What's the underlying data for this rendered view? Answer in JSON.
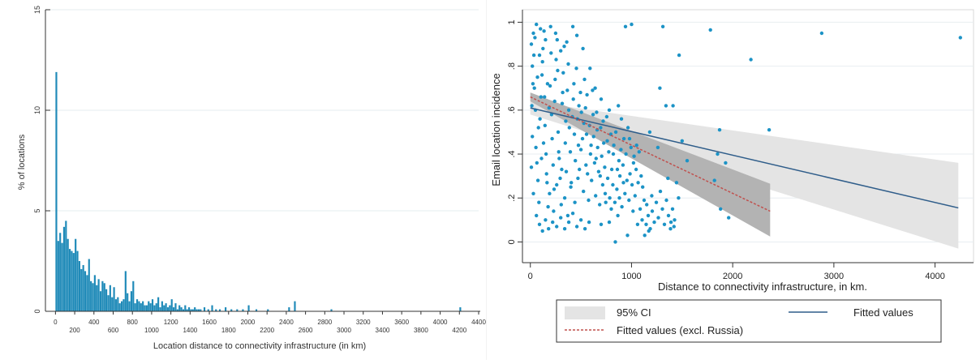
{
  "chart_data": [
    {
      "type": "bar",
      "xlabel": "Location distance to connectivity infrastructure (in km)",
      "ylabel": "% of locations",
      "xlim": [
        -20,
        4400
      ],
      "ylim": [
        0,
        15
      ],
      "x_ticks": [
        0,
        200,
        400,
        600,
        800,
        1000,
        1200,
        1400,
        1600,
        1800,
        2000,
        2200,
        2400,
        2600,
        2800,
        3000,
        3200,
        3400,
        3600,
        3800,
        4000,
        4200,
        4400
      ],
      "x_tick_labels": [
        "0",
        "200",
        "400",
        "600",
        "800",
        "1000",
        "1200",
        "1400",
        "1600",
        "1800",
        "2000",
        "2200",
        "2400",
        "2600",
        "2800",
        "3000",
        "3200",
        "3400",
        "3600",
        "3800",
        "4000",
        "4200",
        "4400"
      ],
      "y_ticks": [
        0,
        5,
        10,
        15
      ],
      "y_tick_labels": [
        "0",
        "5",
        "10",
        "15"
      ],
      "grid": true,
      "bar_color": "#1f8ab8",
      "bin_width": 20,
      "x": [
        0,
        20,
        40,
        60,
        80,
        100,
        120,
        140,
        160,
        180,
        200,
        220,
        240,
        260,
        280,
        300,
        320,
        340,
        360,
        380,
        400,
        420,
        440,
        460,
        480,
        500,
        520,
        540,
        560,
        580,
        600,
        620,
        640,
        660,
        680,
        700,
        720,
        740,
        760,
        780,
        800,
        820,
        840,
        860,
        880,
        900,
        920,
        940,
        960,
        980,
        1000,
        1020,
        1040,
        1060,
        1080,
        1100,
        1120,
        1140,
        1160,
        1180,
        1200,
        1220,
        1240,
        1260,
        1280,
        1300,
        1320,
        1340,
        1360,
        1380,
        1400,
        1420,
        1440,
        1460,
        1480,
        1500,
        1540,
        1580,
        1620,
        1660,
        1700,
        1760,
        1820,
        1880,
        1940,
        2000,
        2080,
        2200,
        2420,
        2480,
        2860,
        4200
      ],
      "values": [
        11.9,
        3.5,
        3.9,
        3.4,
        4.2,
        4.5,
        3.6,
        3.1,
        3.0,
        2.9,
        3.6,
        3.0,
        2.5,
        2.1,
        2.3,
        2.0,
        1.8,
        2.6,
        1.5,
        1.4,
        1.8,
        1.3,
        1.6,
        1.0,
        1.5,
        1.4,
        1.1,
        0.8,
        1.3,
        0.7,
        1.2,
        0.6,
        0.7,
        0.4,
        0.5,
        0.6,
        2.0,
        0.9,
        0.5,
        1.0,
        1.5,
        0.4,
        0.6,
        0.5,
        0.4,
        0.5,
        0.3,
        0.3,
        0.5,
        0.4,
        0.6,
        0.3,
        0.4,
        0.7,
        0.2,
        0.5,
        0.3,
        0.4,
        0.2,
        0.3,
        0.6,
        0.2,
        0.4,
        0.1,
        0.3,
        0.2,
        0.1,
        0.3,
        0.1,
        0.2,
        0.1,
        0.1,
        0.2,
        0.1,
        0.1,
        0.1,
        0.2,
        0.1,
        0.3,
        0.1,
        0.1,
        0.2,
        0.1,
        0.1,
        0.1,
        0.3,
        0.1,
        0.1,
        0.2,
        0.5,
        0.1,
        0.2
      ]
    },
    {
      "type": "scatter",
      "xlabel": "Distance to connectivity infrastructure, in km.",
      "ylabel": "Email location incidence",
      "xlim": [
        -30,
        4300
      ],
      "ylim": [
        -0.05,
        1.02
      ],
      "x_ticks": [
        0,
        1000,
        2000,
        3000,
        4000
      ],
      "x_tick_labels": [
        "0",
        "1000",
        "2000",
        "3000",
        "4000"
      ],
      "y_ticks": [
        0,
        0.2,
        0.4,
        0.6,
        0.8,
        1
      ],
      "y_tick_labels": [
        "0",
        ".2",
        ".4",
        ".6",
        ".8",
        "1"
      ],
      "grid": true,
      "point_color": "#1c93c6",
      "fit_color": "#2f5d8a",
      "fit_excl_color": "#c0504d",
      "ci_color": "#e4e4e4",
      "ci_excl_color": "#b3b3b3",
      "legend_position": "bottom",
      "legend": [
        "95% CI",
        "Fitted values",
        "Fitted values (excl. Russia)"
      ],
      "fitted": {
        "x": [
          0,
          4230
        ],
        "y": [
          0.61,
          0.155
        ]
      },
      "ci": {
        "x": [
          0,
          4230
        ],
        "upper": [
          0.64,
          0.36
        ],
        "lower": [
          0.58,
          -0.03
        ]
      },
      "fitted_excl": {
        "x": [
          0,
          2370
        ],
        "y": [
          0.66,
          0.14
        ]
      },
      "ci_excl": {
        "x": [
          0,
          2370
        ],
        "upper": [
          0.68,
          0.265
        ],
        "lower": [
          0.64,
          0.025
        ]
      },
      "points": [
        [
          1780,
          0.965
        ],
        [
          2880,
          0.95
        ],
        [
          4250,
          0.93
        ],
        [
          2180,
          0.83
        ],
        [
          1000,
          0.99
        ],
        [
          940,
          0.98
        ],
        [
          1310,
          0.98
        ],
        [
          1470,
          0.85
        ],
        [
          1280,
          0.7
        ],
        [
          1340,
          0.62
        ],
        [
          1410,
          0.62
        ],
        [
          1870,
          0.51
        ],
        [
          2360,
          0.51
        ],
        [
          1500,
          0.46
        ],
        [
          1260,
          0.43
        ],
        [
          1550,
          0.37
        ],
        [
          1850,
          0.4
        ],
        [
          1930,
          0.36
        ],
        [
          1820,
          0.28
        ],
        [
          1880,
          0.15
        ],
        [
          1960,
          0.11
        ],
        [
          1130,
          0.03
        ],
        [
          1170,
          0.05
        ],
        [
          1060,
          0.08
        ],
        [
          840,
          0.0
        ],
        [
          960,
          0.03
        ],
        [
          780,
          0.09
        ],
        [
          700,
          0.08
        ],
        [
          1150,
          0.17
        ],
        [
          1200,
          0.21
        ],
        [
          1390,
          0.09
        ],
        [
          1420,
          0.07
        ],
        [
          1110,
          0.25
        ],
        [
          1360,
          0.29
        ],
        [
          1020,
          0.36
        ],
        [
          1050,
          0.44
        ],
        [
          980,
          0.47
        ],
        [
          1180,
          0.5
        ],
        [
          900,
          0.56
        ],
        [
          870,
          0.62
        ],
        [
          780,
          0.6
        ],
        [
          700,
          0.65
        ],
        [
          640,
          0.7
        ],
        [
          590,
          0.79
        ],
        [
          520,
          0.88
        ],
        [
          460,
          0.94
        ],
        [
          420,
          0.98
        ],
        [
          360,
          0.91
        ],
        [
          300,
          0.87
        ],
        [
          250,
          0.95
        ],
        [
          200,
          0.98
        ],
        [
          150,
          0.92
        ],
        [
          100,
          0.97
        ],
        [
          60,
          0.99
        ],
        [
          30,
          0.95
        ],
        [
          10,
          0.9
        ],
        [
          20,
          0.8
        ],
        [
          40,
          0.7
        ],
        [
          70,
          0.75
        ],
        [
          90,
          0.85
        ],
        [
          120,
          0.82
        ],
        [
          140,
          0.66
        ],
        [
          170,
          0.72
        ],
        [
          210,
          0.58
        ],
        [
          240,
          0.64
        ],
        [
          270,
          0.78
        ],
        [
          320,
          0.68
        ],
        [
          350,
          0.55
        ],
        [
          380,
          0.6
        ],
        [
          430,
          0.72
        ],
        [
          480,
          0.62
        ],
        [
          530,
          0.54
        ],
        [
          560,
          0.67
        ],
        [
          620,
          0.58
        ],
        [
          660,
          0.51
        ],
        [
          720,
          0.55
        ],
        [
          760,
          0.46
        ],
        [
          820,
          0.4
        ],
        [
          860,
          0.33
        ],
        [
          920,
          0.27
        ],
        [
          880,
          0.2
        ],
        [
          800,
          0.15
        ],
        [
          740,
          0.22
        ],
        [
          690,
          0.3
        ],
        [
          650,
          0.38
        ],
        [
          600,
          0.44
        ],
        [
          550,
          0.35
        ],
        [
          500,
          0.42
        ],
        [
          470,
          0.29
        ],
        [
          440,
          0.18
        ],
        [
          400,
          0.25
        ],
        [
          370,
          0.12
        ],
        [
          340,
          0.2
        ],
        [
          310,
          0.33
        ],
        [
          280,
          0.41
        ],
        [
          260,
          0.26
        ],
        [
          230,
          0.14
        ],
        [
          190,
          0.22
        ],
        [
          160,
          0.31
        ],
        [
          130,
          0.45
        ],
        [
          110,
          0.38
        ],
        [
          80,
          0.52
        ],
        [
          50,
          0.6
        ],
        [
          20,
          0.48
        ],
        [
          10,
          0.34
        ],
        [
          30,
          0.22
        ],
        [
          60,
          0.12
        ],
        [
          90,
          0.08
        ],
        [
          120,
          0.05
        ],
        [
          150,
          0.1
        ],
        [
          180,
          0.06
        ],
        [
          220,
          0.09
        ],
        [
          260,
          0.07
        ],
        [
          300,
          0.11
        ],
        [
          340,
          0.06
        ],
        [
          380,
          0.09
        ],
        [
          420,
          0.13
        ],
        [
          460,
          0.07
        ],
        [
          500,
          0.1
        ],
        [
          540,
          0.06
        ],
        [
          580,
          0.09
        ],
        [
          15,
          0.62
        ],
        [
          25,
          0.72
        ],
        [
          35,
          0.85
        ],
        [
          45,
          0.93
        ],
        [
          55,
          0.43
        ],
        [
          65,
          0.36
        ],
        [
          75,
          0.28
        ],
        [
          85,
          0.18
        ],
        [
          95,
          0.56
        ],
        [
          105,
          0.66
        ],
        [
          115,
          0.76
        ],
        [
          125,
          0.88
        ],
        [
          135,
          0.96
        ],
        [
          145,
          0.53
        ],
        [
          155,
          0.4
        ],
        [
          165,
          0.27
        ],
        [
          175,
          0.16
        ],
        [
          185,
          0.61
        ],
        [
          195,
          0.71
        ],
        [
          205,
          0.86
        ],
        [
          215,
          0.47
        ],
        [
          225,
          0.35
        ],
        [
          235,
          0.24
        ],
        [
          245,
          0.74
        ],
        [
          255,
          0.83
        ],
        [
          265,
          0.92
        ],
        [
          275,
          0.5
        ],
        [
          285,
          0.38
        ],
        [
          295,
          0.29
        ],
        [
          305,
          0.17
        ],
        [
          315,
          0.63
        ],
        [
          325,
          0.77
        ],
        [
          335,
          0.89
        ],
        [
          345,
          0.45
        ],
        [
          355,
          0.32
        ],
        [
          365,
          0.69
        ],
        [
          375,
          0.81
        ],
        [
          385,
          0.52
        ],
        [
          395,
          0.41
        ],
        [
          405,
          0.27
        ],
        [
          415,
          0.57
        ],
        [
          425,
          0.65
        ],
        [
          435,
          0.49
        ],
        [
          445,
          0.37
        ],
        [
          455,
          0.79
        ],
        [
          465,
          0.56
        ],
        [
          475,
          0.44
        ],
        [
          485,
          0.33
        ],
        [
          495,
          0.68
        ],
        [
          505,
          0.59
        ],
        [
          515,
          0.47
        ],
        [
          525,
          0.23
        ],
        [
          535,
          0.74
        ],
        [
          545,
          0.61
        ],
        [
          555,
          0.49
        ],
        [
          565,
          0.31
        ],
        [
          575,
          0.19
        ],
        [
          585,
          0.53
        ],
        [
          595,
          0.4
        ],
        [
          605,
          0.28
        ],
        [
          615,
          0.69
        ],
        [
          625,
          0.48
        ],
        [
          635,
          0.36
        ],
        [
          645,
          0.21
        ],
        [
          655,
          0.59
        ],
        [
          665,
          0.43
        ],
        [
          675,
          0.32
        ],
        [
          685,
          0.17
        ],
        [
          695,
          0.52
        ],
        [
          705,
          0.39
        ],
        [
          715,
          0.26
        ],
        [
          725,
          0.45
        ],
        [
          735,
          0.34
        ],
        [
          745,
          0.18
        ],
        [
          755,
          0.57
        ],
        [
          765,
          0.29
        ],
        [
          775,
          0.41
        ],
        [
          785,
          0.2
        ],
        [
          795,
          0.49
        ],
        [
          805,
          0.33
        ],
        [
          815,
          0.26
        ],
        [
          825,
          0.44
        ],
        [
          835,
          0.18
        ],
        [
          845,
          0.5
        ],
        [
          855,
          0.24
        ],
        [
          865,
          0.12
        ],
        [
          875,
          0.37
        ],
        [
          885,
          0.3
        ],
        [
          895,
          0.42
        ],
        [
          905,
          0.16
        ],
        [
          915,
          0.35
        ],
        [
          925,
          0.47
        ],
        [
          935,
          0.22
        ],
        [
          945,
          0.4
        ],
        [
          955,
          0.28
        ],
        [
          965,
          0.52
        ],
        [
          975,
          0.19
        ],
        [
          985,
          0.31
        ],
        [
          995,
          0.43
        ],
        [
          1005,
          0.26
        ],
        [
          1015,
          0.14
        ],
        [
          1025,
          0.39
        ],
        [
          1035,
          0.21
        ],
        [
          1045,
          0.33
        ],
        [
          1065,
          0.27
        ],
        [
          1075,
          0.41
        ],
        [
          1085,
          0.15
        ],
        [
          1095,
          0.3
        ],
        [
          1105,
          0.1
        ],
        [
          1125,
          0.19
        ],
        [
          1145,
          0.08
        ],
        [
          1165,
          0.12
        ],
        [
          1185,
          0.06
        ],
        [
          1205,
          0.14
        ],
        [
          1225,
          0.09
        ],
        [
          1245,
          0.18
        ],
        [
          1265,
          0.11
        ],
        [
          1285,
          0.23
        ],
        [
          1305,
          0.15
        ],
        [
          1325,
          0.08
        ],
        [
          1345,
          0.19
        ],
        [
          1365,
          0.12
        ],
        [
          1385,
          0.06
        ],
        [
          1405,
          0.15
        ],
        [
          1425,
          0.1
        ],
        [
          1445,
          0.27
        ],
        [
          1465,
          0.2
        ]
      ]
    }
  ]
}
